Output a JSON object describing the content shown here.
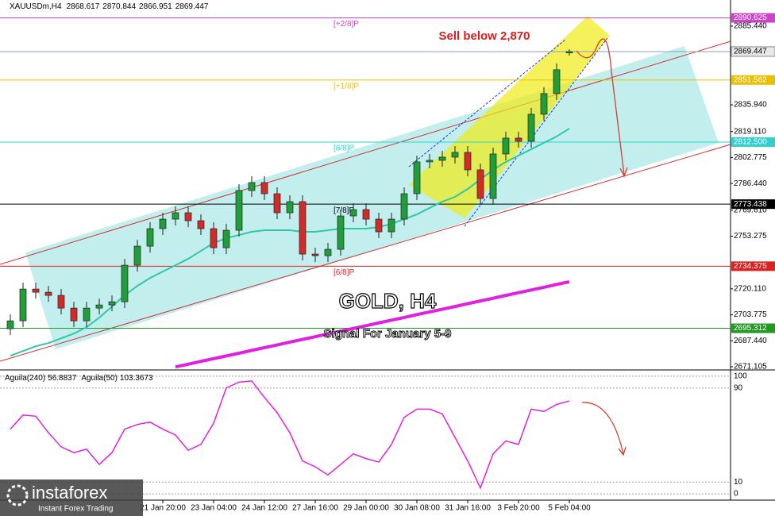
{
  "chart_data": {
    "type": "candlestick",
    "symbol": "XAUUSDm,H4",
    "title": "GOLD, H4",
    "subtitle": "Signal For January 5-9",
    "annotation": "Sell below 2,870",
    "categories": [
      null,
      null,
      null,
      null,
      null,
      null,
      null,
      null,
      null,
      null,
      null,
      null,
      "21 Jan 20:00",
      null,
      null,
      null,
      "23 Jan 04:00",
      null,
      null,
      null,
      "24 Jan 12:00",
      null,
      null,
      null,
      "27 Jan 16:00",
      null,
      null,
      null,
      "29 Jan 00:00",
      null,
      null,
      null,
      "30 Jan 08:00",
      null,
      null,
      null,
      "31 Jan 16:00",
      null,
      null,
      null,
      "3 Feb 20:00",
      null,
      null,
      null,
      "5 Feb 04:00"
    ],
    "open": [
      2695,
      2700,
      2720,
      2718,
      2716,
      2708,
      2700,
      2708,
      2710,
      2712,
      2735,
      2747,
      2758,
      2764,
      2768,
      2763,
      2758,
      2746,
      2757,
      2782,
      2787,
      2780,
      2768,
      2775,
      2742,
      2741,
      2745,
      2766,
      2770,
      2764,
      2756,
      2764,
      2780,
      2800,
      2801,
      2803,
      2806,
      2795,
      2777,
      2805,
      2815,
      2813,
      2830,
      2843,
      2868.617
    ],
    "high": [
      2704,
      2724,
      2724,
      2722,
      2720,
      2712,
      2712,
      2714,
      2716,
      2739,
      2751,
      2762,
      2768,
      2772,
      2772,
      2767,
      2762,
      2761,
      2786,
      2791,
      2791,
      2784,
      2779,
      2779,
      2746,
      2749,
      2770,
      2774,
      2774,
      2768,
      2768,
      2784,
      2804,
      2805,
      2807,
      2810,
      2810,
      2799,
      2809,
      2819,
      2819,
      2834,
      2847,
      2862,
      2870.844
    ],
    "low": [
      2691,
      2696,
      2714,
      2712,
      2704,
      2696,
      2696,
      2704,
      2706,
      2708,
      2731,
      2743,
      2754,
      2760,
      2759,
      2754,
      2742,
      2742,
      2753,
      2778,
      2776,
      2764,
      2764,
      2738,
      2737,
      2737,
      2741,
      2762,
      2760,
      2752,
      2752,
      2760,
      2776,
      2796,
      2797,
      2799,
      2791,
      2773,
      2773,
      2801,
      2809,
      2809,
      2826,
      2839,
      2866.951
    ],
    "close": [
      2700,
      2720,
      2718,
      2716,
      2708,
      2700,
      2708,
      2710,
      2712,
      2735,
      2747,
      2758,
      2764,
      2768,
      2763,
      2758,
      2746,
      2757,
      2782,
      2787,
      2780,
      2768,
      2775,
      2742,
      2741,
      2745,
      2766,
      2770,
      2764,
      2756,
      2764,
      2780,
      2800,
      2801,
      2803,
      2806,
      2795,
      2777,
      2805,
      2815,
      2813,
      2830,
      2843,
      2858,
      2869.447
    ],
    "up_color": "#1f9e3a",
    "down_color": "#d42a2a",
    "moving_averages": [
      {
        "color": "#2fc7a8",
        "values": [
          2678,
          2681,
          2684,
          2686,
          2689,
          2692,
          2696,
          2702,
          2709,
          2716,
          2722,
          2727,
          2731,
          2735,
          2739,
          2744,
          2749,
          2752,
          2754,
          2756,
          2757,
          2757,
          2757,
          2756,
          2756,
          2757,
          2758,
          2758,
          2758,
          2759,
          2761,
          2764,
          2767,
          2771,
          2775,
          2778,
          2783,
          2789,
          2795,
          2800,
          2804,
          2808,
          2812,
          2816,
          2821
        ]
      },
      {
        "color": "#e020e0",
        "values": [
          null,
          null,
          null,
          null,
          null,
          null,
          null,
          null,
          null,
          null,
          null,
          null,
          null,
          2671.0,
          2672.7,
          2674.5,
          2676.2,
          2677.9,
          2679.6,
          2681.4,
          2683.1,
          2684.8,
          2686.6,
          2688.3,
          2690.0,
          2691.8,
          2693.5,
          2695.2,
          2696.9,
          2698.7,
          2700.4,
          2702.1,
          2703.9,
          2705.6,
          2707.3,
          2709.0,
          2710.8,
          2712.5,
          2714.2,
          2716.0,
          2717.7,
          2719.4,
          2721.1,
          2722.9,
          2724.6
        ]
      }
    ],
    "levels": {
      "names": [
        "[+2/8]P",
        "[+1/8]P",
        "[8/8]P",
        "[7/8]P",
        "[6/8]P",
        null
      ],
      "values": [
        2890.625,
        2851.562,
        2812.5,
        2773.438,
        2734.375,
        2695.312
      ],
      "value_labels": [
        "2890.625",
        "2851.562",
        "2812.500",
        "2773.438",
        "2734.375",
        "2695.312"
      ],
      "colors": [
        "#cc44cc",
        "#e8c000",
        "#30d0d0",
        "#000000",
        "#dd2222",
        "#229922"
      ]
    },
    "price_line_color": "#8da0b8",
    "ylim": [
      2669.6,
      2892.9
    ],
    "yticks": [
      {
        "value": 2885.44,
        "label": "2885.440"
      },
      {
        "value": 2835.94,
        "label": "2835.940"
      },
      {
        "value": 2819.11,
        "label": "2819.110"
      },
      {
        "value": 2802.775,
        "label": "2802.775"
      },
      {
        "value": 2786.44,
        "label": "2786.440"
      },
      {
        "value": 2769.61,
        "label": "2769.610"
      },
      {
        "value": 2753.275,
        "label": "2753.275"
      },
      {
        "value": 2720.11,
        "label": "2720.110"
      },
      {
        "value": 2703.775,
        "label": "2703.775"
      },
      {
        "value": 2687.44,
        "label": "2687.440"
      },
      {
        "value": 2671.105,
        "label": "2671.105"
      }
    ],
    "indicator": {
      "series": [
        {
          "name": "Aguila(240)",
          "value": 56.8837
        },
        {
          "name": "Aguila(50)",
          "value": 103.3673
        }
      ],
      "color": "#e020e0",
      "values": [
        55,
        67,
        66,
        52,
        40,
        35,
        38,
        25,
        35,
        55,
        59,
        61,
        55,
        50,
        37,
        42,
        60,
        90,
        95,
        96,
        82,
        69,
        52,
        28,
        23,
        16,
        25,
        34,
        30,
        27,
        42,
        65,
        72,
        72,
        68,
        48,
        28,
        5,
        34,
        45,
        42,
        72,
        70,
        76,
        79
      ],
      "ylim": [
        -4,
        104
      ],
      "yticks": [
        100,
        90,
        10,
        0
      ]
    }
  },
  "logo": {
    "name": "instaforex",
    "tagline": "Instant Forex Trading"
  }
}
